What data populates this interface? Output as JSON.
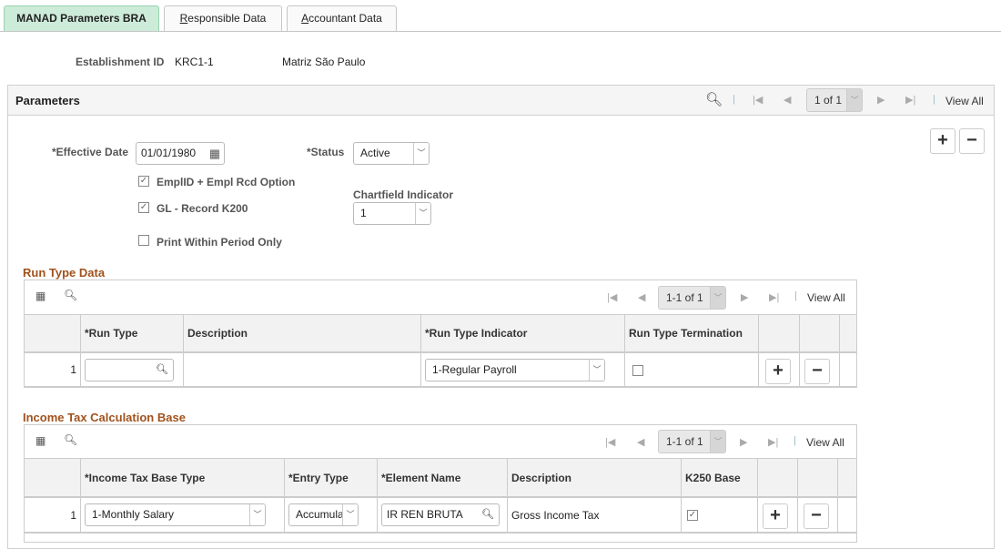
{
  "tabs": [
    {
      "label": "MANAD Parameters BRA",
      "active": true
    },
    {
      "label": "Responsible Data",
      "accesskey": "R",
      "rest": "esponsible Data"
    },
    {
      "label": "Accountant Data",
      "accesskey": "A",
      "rest": "ccountant Data"
    }
  ],
  "establishment": {
    "label": "Establishment ID",
    "id": "KRC1-1",
    "name": "Matriz São Paulo"
  },
  "parameters": {
    "title": "Parameters",
    "pager": "1 of 1",
    "view_all": "View All",
    "effective_date_label": "*Effective Date",
    "effective_date": "01/01/1980",
    "status_label": "*Status",
    "status": "Active",
    "emplid_option": {
      "label": "EmplID + Empl Rcd Option",
      "checked": true
    },
    "gl_record": {
      "label": "GL - Record K200",
      "checked": true
    },
    "print_within": {
      "label": "Print Within Period Only",
      "checked": false
    },
    "chartfield_label": "Chartfield Indicator",
    "chartfield": "1"
  },
  "run_type": {
    "title": "Run Type Data",
    "pager": "1-1 of 1",
    "view_all": "View All",
    "columns": [
      "*Run Type",
      "Description",
      "*Run Type Indicator",
      "Run Type Termination"
    ],
    "rows": [
      {
        "num": "1",
        "run_type": "",
        "description": "",
        "indicator": "1-Regular Payroll",
        "termination": false
      }
    ]
  },
  "income_tax": {
    "title": "Income Tax Calculation Base",
    "pager": "1-1 of 1",
    "view_all": "View All",
    "columns": [
      "*Income Tax Base Type",
      "*Entry Type",
      "*Element Name",
      "Description",
      "K250 Base"
    ],
    "rows": [
      {
        "num": "1",
        "base_type": "1-Monthly Salary",
        "entry_type": "Accumula",
        "element": "IR REN BRUTA",
        "description": "Gross Income Tax",
        "k250": true
      }
    ]
  },
  "colors": {
    "active_tab": "#cdebd9",
    "section_title": "#a0521c"
  }
}
